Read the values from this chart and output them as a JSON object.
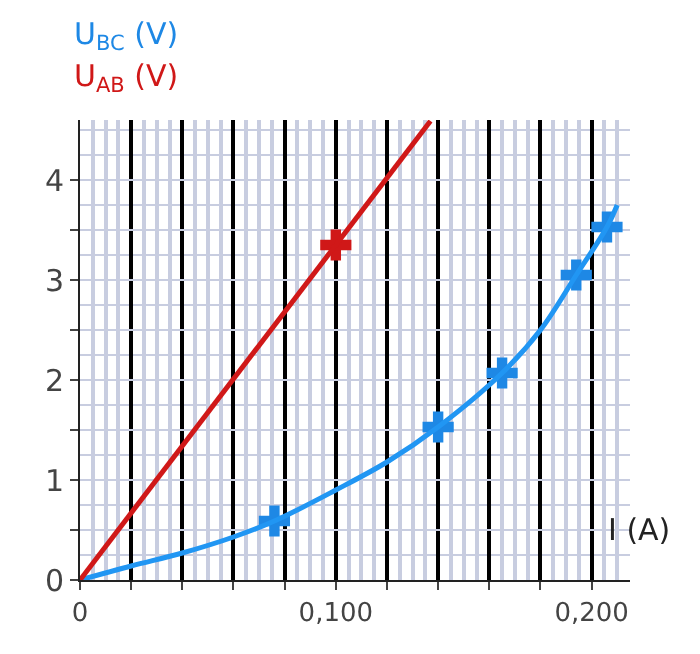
{
  "chart_data": {
    "type": "scatter",
    "xlabel": "I (A)",
    "series": [
      {
        "name": "U$_{BC}$ (V)",
        "color": "#1e88e5",
        "marker": "cross",
        "x": [
          0.076,
          0.14,
          0.165,
          0.194,
          0.206
        ],
        "values": [
          0.59,
          1.53,
          2.07,
          3.05,
          3.53
        ]
      },
      {
        "name": "U$_{AB}$ (V)",
        "color": "#d01818",
        "marker": "cross",
        "x": [
          0.1
        ],
        "values": [
          3.35
        ]
      },
      {
        "color": "#2196f3",
        "type": "line",
        "marker": "none",
        "x": [
          0,
          0.02,
          0.04,
          0.06,
          0.076,
          0.1,
          0.12,
          0.14,
          0.165,
          0.18,
          0.194,
          0.206,
          0.21
        ],
        "values": [
          0,
          0.14,
          0.27,
          0.43,
          0.59,
          0.9,
          1.18,
          1.53,
          2.07,
          2.5,
          3.05,
          3.53,
          3.75
        ]
      },
      {
        "color": "#d01818",
        "type": "line",
        "marker": "none",
        "x": [
          0,
          0.137
        ],
        "values": [
          0,
          4.59
        ]
      }
    ],
    "xlim": [
      0,
      0.215
    ],
    "ylim": [
      0,
      4.6
    ],
    "xticks": [
      0,
      {
        "value": 0.02,
        "label": null
      },
      {
        "value": 0.04,
        "label": null
      },
      {
        "value": 0.06,
        "label": null
      },
      {
        "value": 0.08,
        "label": null
      },
      {
        "value": 0.1,
        "label": "0,100"
      },
      {
        "value": 0.12,
        "label": null
      },
      {
        "value": 0.14,
        "label": null
      },
      {
        "value": 0.16,
        "label": null
      },
      {
        "value": 0.18,
        "label": null
      },
      {
        "value": 0.2,
        "label": "0,200"
      }
    ],
    "yticks": [
      0,
      {
        "value": 0.5,
        "label": null
      },
      1,
      {
        "value": 1.5,
        "label": null
      },
      2,
      {
        "value": 2.5,
        "label": null
      },
      3,
      {
        "value": 3.5,
        "label": null
      },
      4
    ],
    "grid": true,
    "legend": false
  }
}
